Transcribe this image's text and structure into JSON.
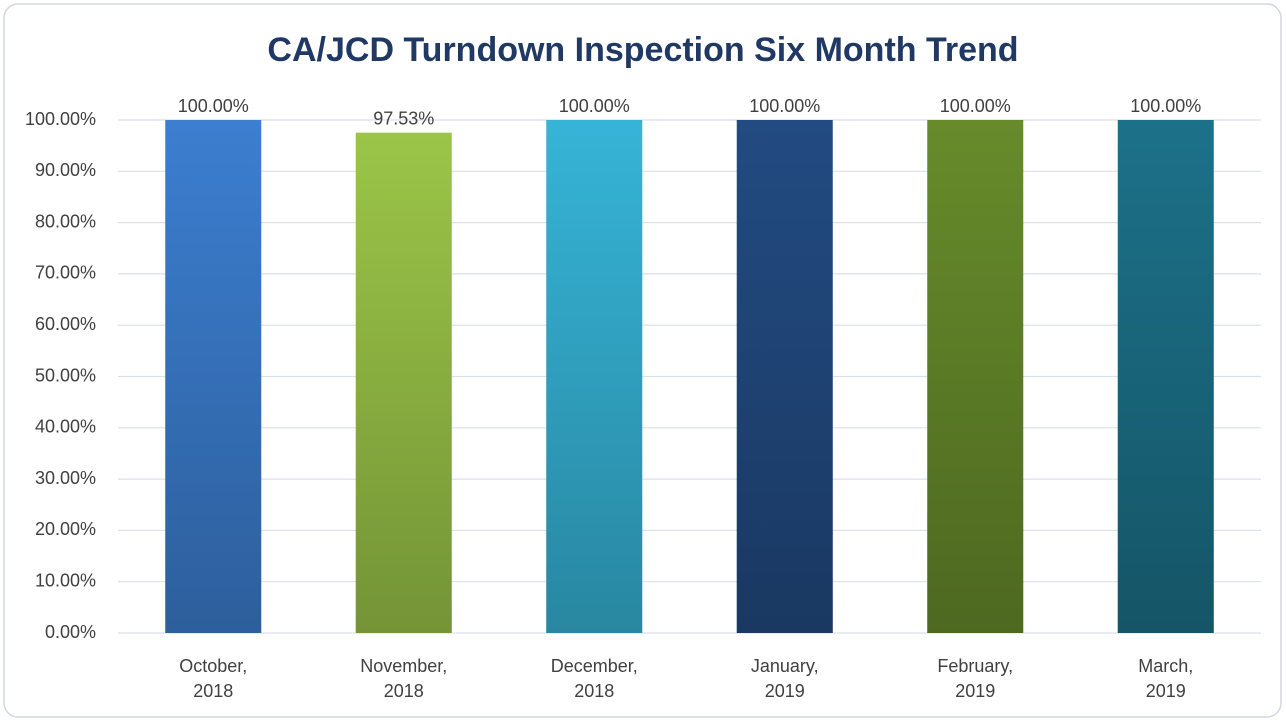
{
  "chart_data": {
    "type": "bar",
    "title": "CA/JCD Turndown Inspection Six Month Trend",
    "categories": [
      "October, 2018",
      "November, 2018",
      "December, 2018",
      "January, 2019",
      "February, 2019",
      "March, 2019"
    ],
    "values": [
      100,
      97.53,
      100,
      100,
      100,
      100
    ],
    "value_labels": [
      "100.00%",
      "97.53%",
      "100.00%",
      "100.00%",
      "100.00%",
      "100.00%"
    ],
    "colors": [
      "#3c7ed0",
      "#9bc548",
      "#36b4d7",
      "#224b82",
      "#678b2b",
      "#1c7189"
    ],
    "ylim": [
      0,
      100
    ],
    "yticks": [
      {
        "value": 0,
        "label": "0.00%"
      },
      {
        "value": 10,
        "label": "10.00%"
      },
      {
        "value": 20,
        "label": "20.00%"
      },
      {
        "value": 30,
        "label": "30.00%"
      },
      {
        "value": 40,
        "label": "40.00%"
      },
      {
        "value": 50,
        "label": "50.00%"
      },
      {
        "value": 60,
        "label": "60.00%"
      },
      {
        "value": 70,
        "label": "70.00%"
      },
      {
        "value": 80,
        "label": "80.00%"
      },
      {
        "value": 90,
        "label": "90.00%"
      },
      {
        "value": 100,
        "label": "100.00%"
      }
    ],
    "grid": true
  }
}
